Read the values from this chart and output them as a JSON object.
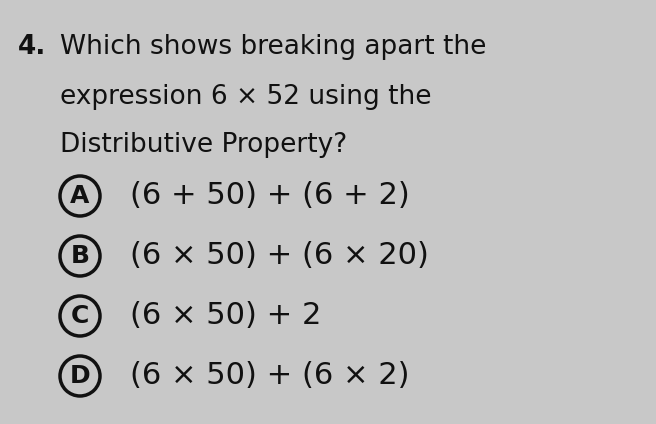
{
  "background_color": "#c8c8c8",
  "question_number": "4.",
  "question_line1": "Which shows breaking apart the",
  "question_line2": "expression 6 × 52 using the",
  "question_line3": "Distributive Property?",
  "options": [
    {
      "label": "A",
      "text": "(6 + 50) + (6 + 2)"
    },
    {
      "label": "B",
      "text": "(6 × 50) + (6 × 20)"
    },
    {
      "label": "C",
      "text": "(6 × 50) + 2"
    },
    {
      "label": "D",
      "text": "(6 × 50) + (6 × 2)"
    }
  ],
  "question_fontsize": 19,
  "option_fontsize": 22,
  "label_fontsize": 18,
  "num_fontsize": 19,
  "text_color": "#111111",
  "circle_color": "#111111",
  "circle_linewidth": 2.5
}
